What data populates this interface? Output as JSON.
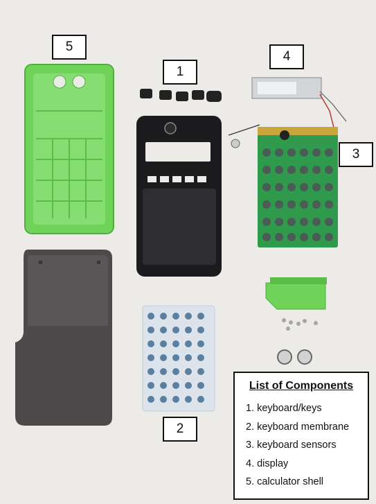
{
  "colors": {
    "background": "#ecebe8",
    "shell_green": "#6fd35a",
    "keyboard_black": "#1c1c1e",
    "pcb_green": "#2f9a4c",
    "membrane_dot": "#5a7fa0",
    "cover_smoke": "#4e4a4c"
  },
  "icons": [
    "battery-icon",
    "screw-icon"
  ],
  "markers": {
    "shell": "5",
    "keys": "1",
    "display": "4",
    "sensors": "3",
    "membrane": "2"
  },
  "legend": {
    "title": "List of Components",
    "items": [
      {
        "text": "1. keyboard/keys"
      },
      {
        "text": "2. keyboard membrane"
      },
      {
        "text": "3. keyboard sensors"
      },
      {
        "text": "4. display"
      },
      {
        "text": "5. calculator shell"
      }
    ]
  }
}
